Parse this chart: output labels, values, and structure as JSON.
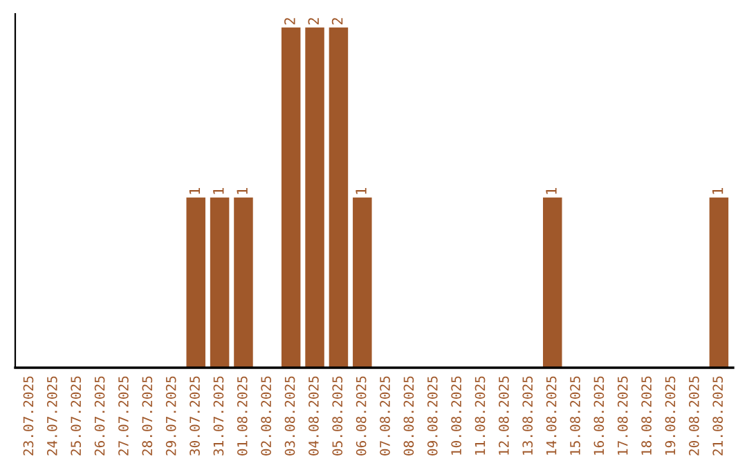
{
  "chart_data": {
    "type": "bar",
    "categories": [
      "23.07.2025",
      "24.07.2025",
      "25.07.2025",
      "26.07.2025",
      "27.07.2025",
      "28.07.2025",
      "29.07.2025",
      "30.07.2025",
      "31.07.2025",
      "01.08.2025",
      "02.08.2025",
      "03.08.2025",
      "04.08.2025",
      "05.08.2025",
      "06.08.2025",
      "07.08.2025",
      "08.08.2025",
      "09.08.2025",
      "10.08.2025",
      "11.08.2025",
      "12.08.2025",
      "13.08.2025",
      "14.08.2025",
      "15.08.2025",
      "16.08.2025",
      "17.08.2025",
      "18.08.2025",
      "19.08.2025",
      "20.08.2025",
      "21.08.2025"
    ],
    "values": [
      0,
      0,
      0,
      0,
      0,
      0,
      0,
      1,
      1,
      1,
      0,
      2,
      2,
      2,
      1,
      0,
      0,
      0,
      0,
      0,
      0,
      0,
      1,
      0,
      0,
      0,
      0,
      0,
      0,
      1
    ],
    "value_labels": [
      null,
      null,
      null,
      null,
      null,
      null,
      null,
      "1",
      "1",
      "1",
      null,
      "2",
      "2",
      "2",
      "1",
      null,
      null,
      null,
      null,
      null,
      null,
      null,
      "1",
      null,
      null,
      null,
      null,
      null,
      null,
      "1"
    ],
    "color": "#a0582a",
    "tick_labels": "x",
    "grid": false,
    "legend": false
  }
}
